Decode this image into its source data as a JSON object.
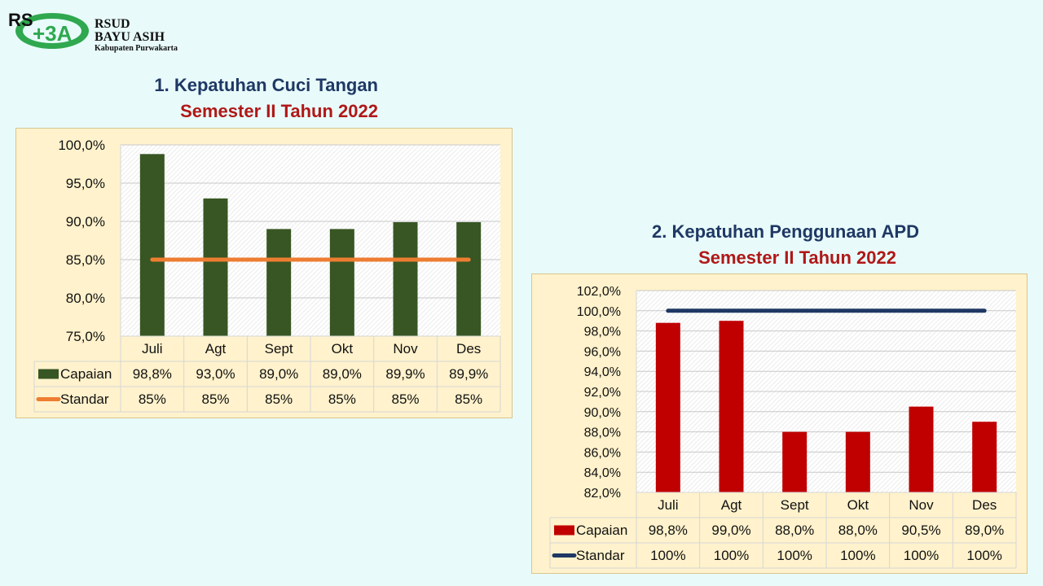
{
  "logo": {
    "line1": "RSUD",
    "line2": "BAYU ASIH",
    "line3": "Kabupaten Purwakarta"
  },
  "chart_data": [
    {
      "type": "bar",
      "title": "1. Kepatuhan Cuci Tangan",
      "subtitle": "Semester II Tahun 2022",
      "categories": [
        "Juli",
        "Agt",
        "Sept",
        "Okt",
        "Nov",
        "Des"
      ],
      "series": [
        {
          "name": "Capaian",
          "kind": "bar",
          "color": "#375623",
          "values": [
            98.8,
            93.0,
            89.0,
            89.0,
            89.9,
            89.9
          ],
          "labels": [
            "98,8%",
            "93,0%",
            "89,0%",
            "89,0%",
            "89,9%",
            "89,9%"
          ]
        },
        {
          "name": "Standar",
          "kind": "line",
          "color": "#ed7d31",
          "values": [
            85,
            85,
            85,
            85,
            85,
            85
          ],
          "labels": [
            "85%",
            "85%",
            "85%",
            "85%",
            "85%",
            "85%"
          ]
        }
      ],
      "ylim": [
        75,
        100
      ],
      "yticks": [
        75,
        80,
        85,
        90,
        95,
        100
      ],
      "ytick_labels": [
        "75,0%",
        "80,0%",
        "85,0%",
        "90,0%",
        "95,0%",
        "100,0%"
      ],
      "grid": true,
      "legend": "data-table"
    },
    {
      "type": "bar",
      "title": "2. Kepatuhan Penggunaan APD",
      "subtitle": "Semester II Tahun 2022",
      "categories": [
        "Juli",
        "Agt",
        "Sept",
        "Okt",
        "Nov",
        "Des"
      ],
      "series": [
        {
          "name": "Capaian",
          "kind": "bar",
          "color": "#c00000",
          "values": [
            98.8,
            99.0,
            88.0,
            88.0,
            90.5,
            89.0
          ],
          "labels": [
            "98,8%",
            "99,0%",
            "88,0%",
            "88,0%",
            "90,5%",
            "89,0%"
          ]
        },
        {
          "name": "Standar",
          "kind": "line",
          "color": "#1f3864",
          "values": [
            100,
            100,
            100,
            100,
            100,
            100
          ],
          "labels": [
            "100%",
            "100%",
            "100%",
            "100%",
            "100%",
            "100%"
          ]
        }
      ],
      "ylim": [
        82,
        102
      ],
      "yticks": [
        82,
        84,
        86,
        88,
        90,
        92,
        94,
        96,
        98,
        100,
        102
      ],
      "ytick_labels": [
        "82,0%",
        "84,0%",
        "86,0%",
        "88,0%",
        "90,0%",
        "92,0%",
        "94,0%",
        "96,0%",
        "98,0%",
        "100,0%",
        "102,0%"
      ],
      "grid": true,
      "legend": "data-table"
    }
  ]
}
